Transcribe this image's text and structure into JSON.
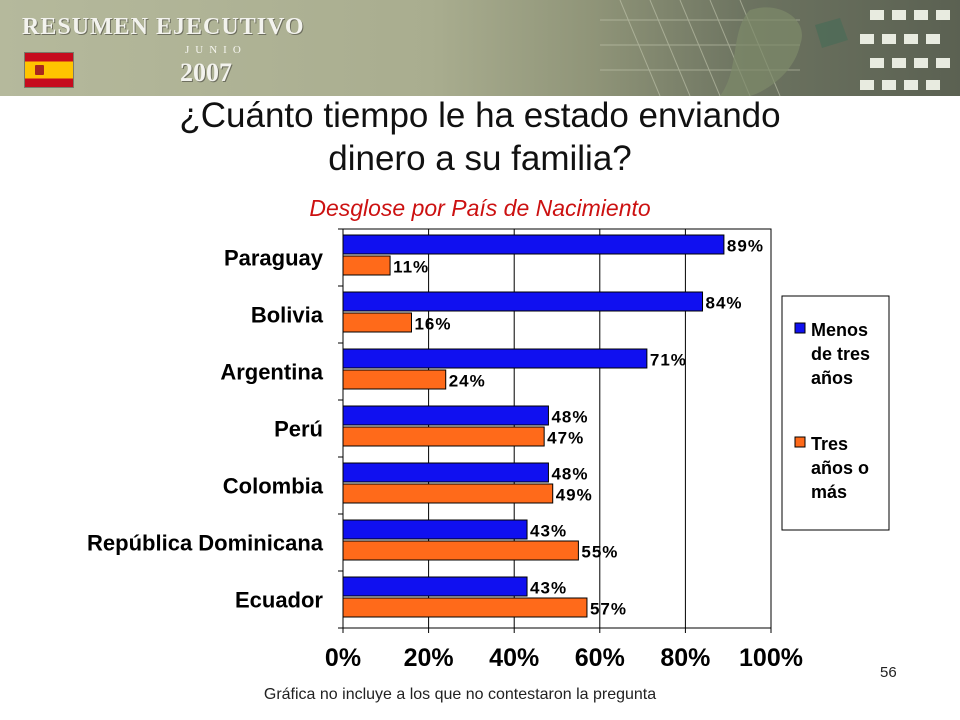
{
  "header": {
    "banner_title": "RESUMEN EJECUTIVO",
    "banner_month": "JUNIO",
    "banner_year": "2007"
  },
  "slide": {
    "title_line1": "¿Cuánto tiempo le ha estado enviando",
    "title_line2": "dinero a su familia?",
    "subtitle": "Desglose por País de Nacimiento",
    "footnote": "Gráfica no incluye a los que no contestaron la pregunta",
    "page_number": "56"
  },
  "colors": {
    "series1": "#1010f0",
    "series2": "#ff6a1a"
  },
  "chart_data": {
    "type": "bar",
    "orientation": "horizontal",
    "categories": [
      "Paraguay",
      "Bolivia",
      "Argentina",
      "Perú",
      "Colombia",
      "República Dominicana",
      "Ecuador"
    ],
    "series": [
      {
        "name": "Menos de tres años",
        "values": [
          89,
          84,
          71,
          48,
          48,
          43,
          43
        ]
      },
      {
        "name": "Tres años o más",
        "values": [
          11,
          16,
          24,
          47,
          49,
          55,
          57
        ]
      }
    ],
    "data_labels": [
      [
        "89%",
        "84%",
        "71%",
        "48%",
        "48%",
        "43%",
        "43%"
      ],
      [
        "11%",
        "16%",
        "24%",
        "47%",
        "49%",
        "55%",
        "57%"
      ]
    ],
    "xlim": [
      0,
      100
    ],
    "xticks": [
      0,
      20,
      40,
      60,
      80,
      100
    ],
    "xtick_labels": [
      "0%",
      "20%",
      "40%",
      "60%",
      "80%",
      "100%"
    ],
    "grid": true,
    "legend_position": "right",
    "legend": [
      {
        "lines": [
          "Menos",
          "de tres",
          "años"
        ]
      },
      {
        "lines": [
          "Tres",
          "años o",
          "más"
        ]
      }
    ]
  }
}
